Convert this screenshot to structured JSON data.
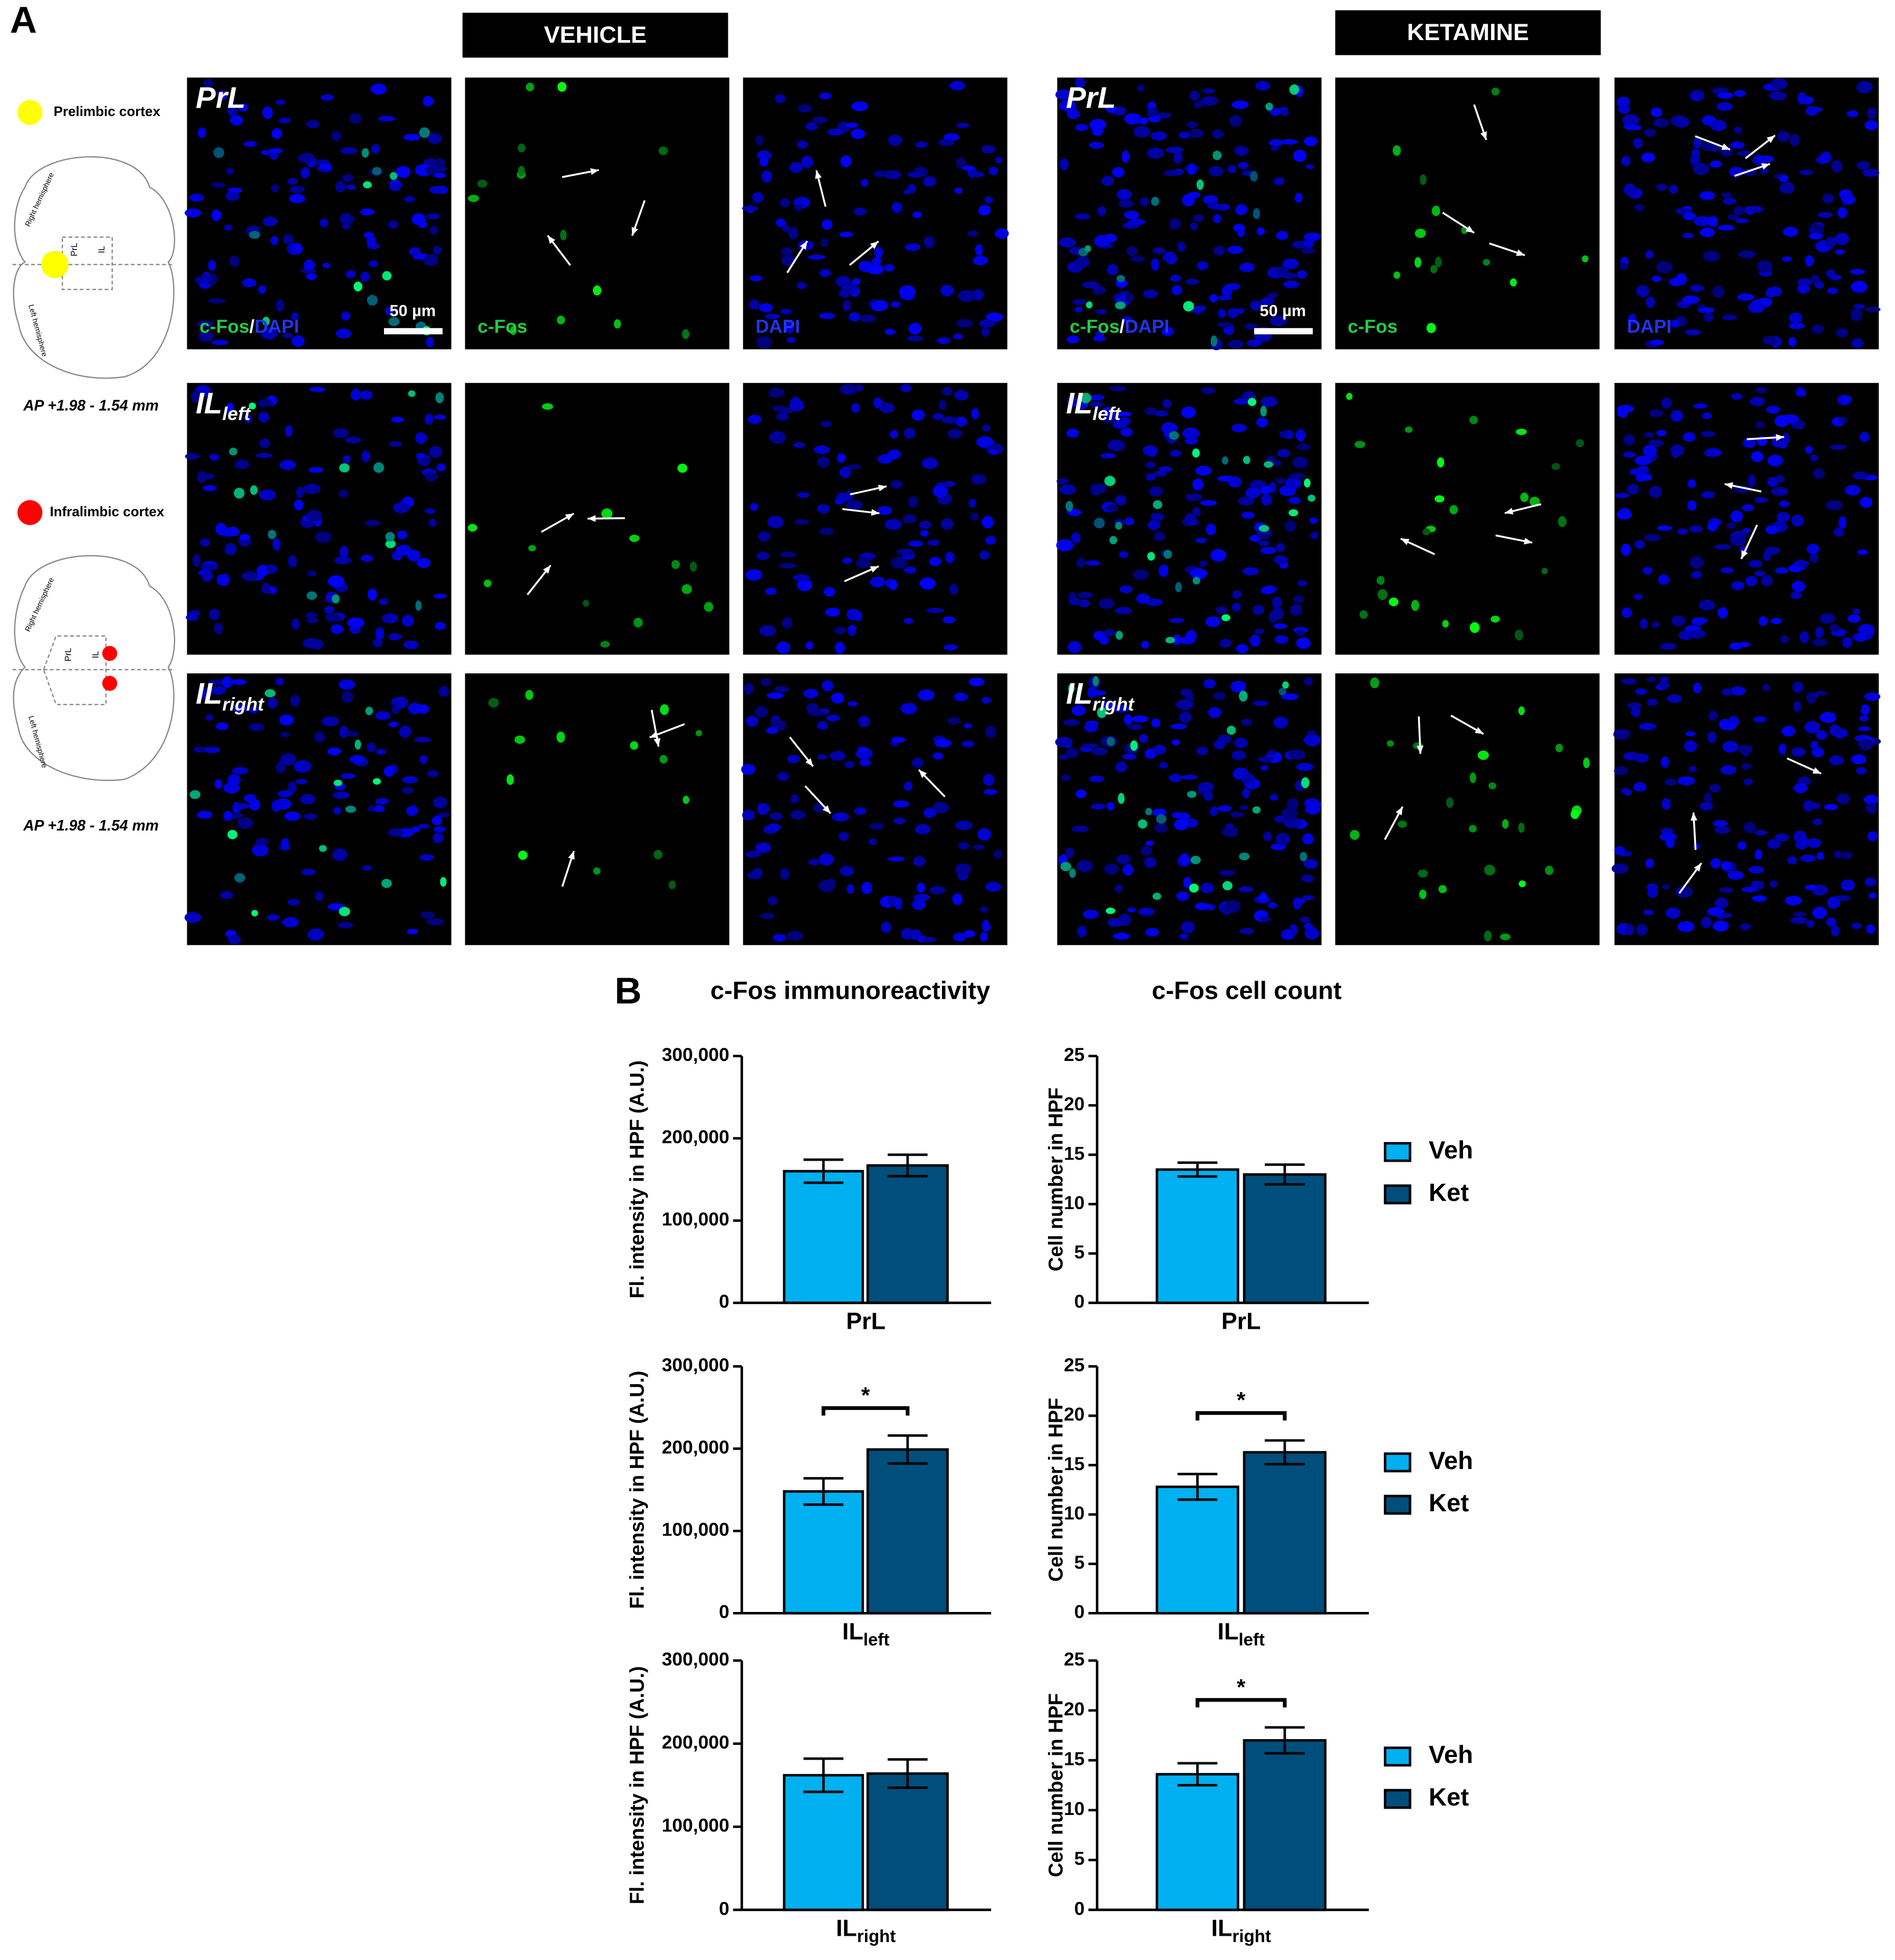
{
  "panel_a": {
    "label": "A",
    "groups": [
      "VEHICLE",
      "KETAMINE"
    ],
    "regions": [
      {
        "name": "PrL"
      },
      {
        "name": "IL",
        "sub": "left"
      },
      {
        "name": "IL",
        "sub": "right"
      }
    ],
    "channels": [
      "c-Fos",
      "DAPI"
    ],
    "merge_separator": "/",
    "scale_bar": "50 µm",
    "atlas": [
      {
        "label": "Prelimbic cortex",
        "color": "#ffff00",
        "coords": "AP +1.98 - 1.54 mm"
      },
      {
        "label": "Infralimbic cortex",
        "color": "#ff0000",
        "coords": "AP +1.98 - 1.54 mm"
      }
    ],
    "hemispheres": [
      "Right hemisphere",
      "Left hemisphere"
    ],
    "schematic_regions": [
      "PrL",
      "IL"
    ]
  },
  "panel_b": {
    "label": "B",
    "titles": [
      "c-Fos immunoreactivity",
      "c-Fos cell count"
    ]
  },
  "chart_data": [
    {
      "type": "bar",
      "ylabel": "Fl. intensity in HPF (A.U.)",
      "categories": [
        "PrL"
      ],
      "series": [
        {
          "name": "Veh",
          "color": "#00b0f0",
          "values": [
            160000
          ],
          "errors": [
            14000
          ]
        },
        {
          "name": "Ket",
          "color": "#004e7c",
          "values": [
            167000
          ],
          "errors": [
            13000
          ]
        }
      ],
      "ylim": [
        0,
        300000
      ],
      "yticks": [
        0,
        {
          "value": 100000,
          "label": "100,000"
        },
        {
          "value": 200000,
          "label": "200,000"
        },
        {
          "value": 300000,
          "label": "300,000"
        }
      ]
    },
    {
      "type": "bar",
      "ylabel": "Cell number in HPF",
      "categories": [
        "PrL"
      ],
      "series": [
        {
          "name": "Veh",
          "color": "#00b0f0",
          "values": [
            13.5
          ],
          "errors": [
            0.7
          ]
        },
        {
          "name": "Ket",
          "color": "#004e7c",
          "values": [
            13.0
          ],
          "errors": [
            1.0
          ]
        }
      ],
      "ylim": [
        0,
        25
      ],
      "yticks": [
        0,
        5,
        10,
        15,
        20,
        25
      ],
      "legend": "right"
    },
    {
      "type": "bar",
      "ylabel": "Fl. intensity in HPF (A.U.)",
      "categories": [
        "IL"
      ],
      "category_subscripts": [
        "left"
      ],
      "series": [
        {
          "name": "Veh",
          "color": "#00b0f0",
          "values": [
            148000
          ],
          "errors": [
            16000
          ]
        },
        {
          "name": "Ket",
          "color": "#004e7c",
          "values": [
            199000
          ],
          "errors": [
            17000
          ]
        }
      ],
      "ylim": [
        0,
        300000
      ],
      "yticks": [
        0,
        {
          "value": 100000,
          "label": "100,000"
        },
        {
          "value": 200000,
          "label": "200,000"
        },
        {
          "value": 300000,
          "label": "300,000"
        }
      ],
      "significance": "*"
    },
    {
      "type": "bar",
      "ylabel": "Cell number in HPF",
      "categories": [
        "IL"
      ],
      "category_subscripts": [
        "left"
      ],
      "series": [
        {
          "name": "Veh",
          "color": "#00b0f0",
          "values": [
            12.8
          ],
          "errors": [
            1.3
          ]
        },
        {
          "name": "Ket",
          "color": "#004e7c",
          "values": [
            16.3
          ],
          "errors": [
            1.2
          ]
        }
      ],
      "ylim": [
        0,
        25
      ],
      "yticks": [
        0,
        5,
        10,
        15,
        20,
        25
      ],
      "legend": "right",
      "significance": "*"
    },
    {
      "type": "bar",
      "ylabel": "Fl. intensity in HPF (A.U.)",
      "categories": [
        "IL"
      ],
      "category_subscripts": [
        "right"
      ],
      "series": [
        {
          "name": "Veh",
          "color": "#00b0f0",
          "values": [
            162000
          ],
          "errors": [
            20000
          ]
        },
        {
          "name": "Ket",
          "color": "#004e7c",
          "values": [
            164000
          ],
          "errors": [
            17000
          ]
        }
      ],
      "ylim": [
        0,
        300000
      ],
      "yticks": [
        0,
        {
          "value": 100000,
          "label": "100,000"
        },
        {
          "value": 200000,
          "label": "200,000"
        },
        {
          "value": 300000,
          "label": "300,000"
        }
      ]
    },
    {
      "type": "bar",
      "ylabel": "Cell number in HPF",
      "categories": [
        "IL"
      ],
      "category_subscripts": [
        "right"
      ],
      "series": [
        {
          "name": "Veh",
          "color": "#00b0f0",
          "values": [
            13.6
          ],
          "errors": [
            1.1
          ]
        },
        {
          "name": "Ket",
          "color": "#004e7c",
          "values": [
            17.0
          ],
          "errors": [
            1.3
          ]
        }
      ],
      "ylim": [
        0,
        25
      ],
      "yticks": [
        0,
        5,
        10,
        15,
        20,
        25
      ],
      "legend": "right",
      "significance": "*"
    }
  ]
}
